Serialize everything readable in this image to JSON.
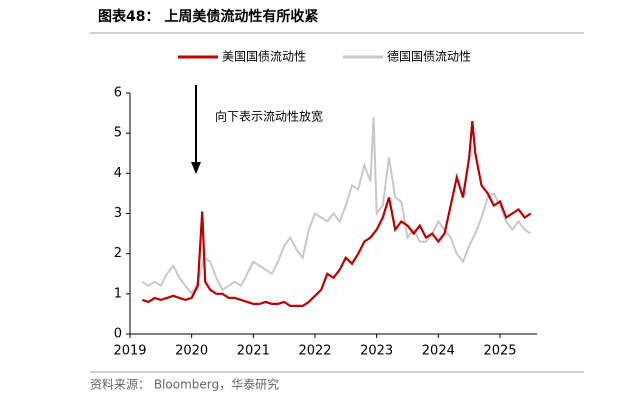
{
  "chart_data": {
    "type": "line",
    "title": "图表48：  上周美债流动性有所收紧",
    "annotation": "向下表示流动性放宽",
    "source": "资料来源：  Bloomberg，华泰研究",
    "xlim": [
      2019,
      2025.6
    ],
    "xticks": [
      2019,
      2020,
      2021,
      2022,
      2023,
      2024,
      2025
    ],
    "ylim": [
      0,
      6
    ],
    "yticks": [
      0,
      1,
      2,
      3,
      4,
      5,
      6
    ],
    "series": [
      {
        "name": "美国国债流动性",
        "color": "#c00000",
        "x": [
          2019.2,
          2019.3,
          2019.4,
          2019.5,
          2019.6,
          2019.7,
          2019.8,
          2019.9,
          2020.0,
          2020.1,
          2020.17,
          2020.22,
          2020.3,
          2020.4,
          2020.5,
          2020.6,
          2020.7,
          2020.8,
          2020.9,
          2021.0,
          2021.1,
          2021.2,
          2021.3,
          2021.4,
          2021.5,
          2021.6,
          2021.7,
          2021.8,
          2021.9,
          2022.0,
          2022.1,
          2022.2,
          2022.3,
          2022.4,
          2022.5,
          2022.6,
          2022.7,
          2022.8,
          2022.9,
          2023.0,
          2023.1,
          2023.2,
          2023.3,
          2023.4,
          2023.5,
          2023.6,
          2023.7,
          2023.8,
          2023.9,
          2024.0,
          2024.1,
          2024.2,
          2024.3,
          2024.4,
          2024.5,
          2024.55,
          2024.6,
          2024.7,
          2024.8,
          2024.9,
          2025.0,
          2025.1,
          2025.2,
          2025.3,
          2025.4,
          2025.5
        ],
        "values": [
          0.85,
          0.8,
          0.9,
          0.85,
          0.9,
          0.95,
          0.9,
          0.85,
          0.9,
          1.2,
          3.05,
          1.3,
          1.1,
          1.0,
          1.0,
          0.9,
          0.9,
          0.85,
          0.8,
          0.75,
          0.75,
          0.8,
          0.75,
          0.75,
          0.8,
          0.7,
          0.7,
          0.7,
          0.8,
          0.95,
          1.1,
          1.5,
          1.4,
          1.6,
          1.9,
          1.75,
          2.0,
          2.3,
          2.4,
          2.6,
          2.9,
          3.4,
          2.6,
          2.8,
          2.7,
          2.5,
          2.7,
          2.4,
          2.5,
          2.3,
          2.5,
          3.2,
          3.9,
          3.4,
          4.4,
          5.3,
          4.5,
          3.7,
          3.5,
          3.2,
          3.3,
          2.9,
          3.0,
          3.1,
          2.9,
          3.0
        ]
      },
      {
        "name": "德国国债流动性",
        "color": "#c8c8c8",
        "x": [
          2019.2,
          2019.3,
          2019.4,
          2019.5,
          2019.6,
          2019.7,
          2019.8,
          2019.9,
          2020.0,
          2020.1,
          2020.2,
          2020.3,
          2020.4,
          2020.5,
          2020.6,
          2020.7,
          2020.8,
          2020.9,
          2021.0,
          2021.1,
          2021.2,
          2021.3,
          2021.4,
          2021.5,
          2021.6,
          2021.7,
          2021.8,
          2021.9,
          2022.0,
          2022.1,
          2022.2,
          2022.3,
          2022.4,
          2022.5,
          2022.6,
          2022.7,
          2022.8,
          2022.9,
          2022.95,
          2023.0,
          2023.1,
          2023.2,
          2023.3,
          2023.4,
          2023.5,
          2023.6,
          2023.7,
          2023.8,
          2023.9,
          2024.0,
          2024.1,
          2024.2,
          2024.3,
          2024.4,
          2024.5,
          2024.6,
          2024.7,
          2024.8,
          2024.9,
          2025.0,
          2025.1,
          2025.2,
          2025.3,
          2025.4,
          2025.5
        ],
        "values": [
          1.3,
          1.2,
          1.3,
          1.2,
          1.5,
          1.7,
          1.4,
          1.2,
          1.0,
          1.3,
          1.9,
          1.8,
          1.4,
          1.1,
          1.2,
          1.3,
          1.2,
          1.5,
          1.8,
          1.7,
          1.6,
          1.5,
          1.8,
          2.2,
          2.4,
          2.1,
          1.9,
          2.6,
          3.0,
          2.9,
          2.8,
          3.0,
          2.8,
          3.2,
          3.7,
          3.6,
          4.2,
          3.8,
          5.4,
          3.0,
          3.2,
          4.4,
          3.4,
          3.3,
          2.4,
          2.6,
          2.3,
          2.3,
          2.5,
          2.8,
          2.6,
          2.4,
          2.0,
          1.8,
          2.2,
          2.5,
          2.9,
          3.4,
          3.5,
          3.2,
          2.8,
          2.6,
          2.8,
          2.6,
          2.5
        ]
      }
    ]
  }
}
